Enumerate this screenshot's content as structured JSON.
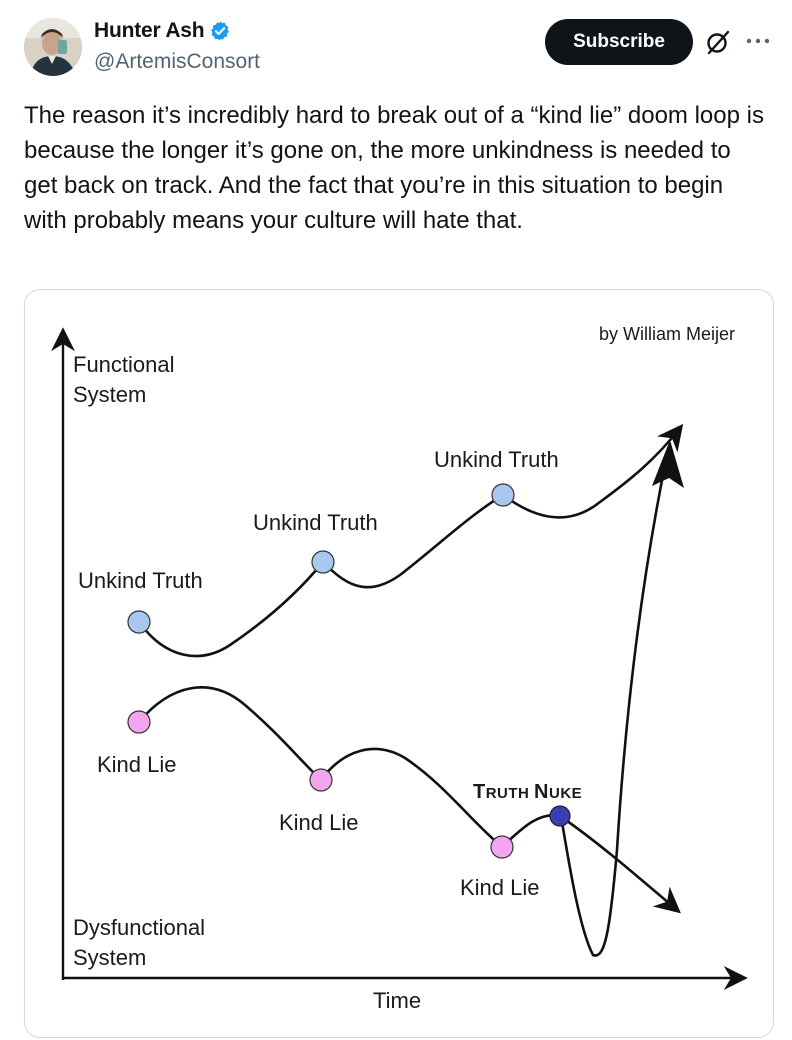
{
  "author": {
    "display_name": "Hunter Ash",
    "handle": "@ArtemisConsort",
    "verified": true,
    "avatar_icon": "avatar-photo"
  },
  "header": {
    "subscribe_label": "Subscribe",
    "grok_icon": "grok-icon",
    "more_icon": "more-options-icon"
  },
  "tweet": {
    "text": "The reason it’s incredibly hard to break out of a “kind lie” doom loop is because the longer it’s gone on, the more unkindness is needed to get back on track. And the fact that you’re in this situation to begin with probably means your culture will hate that."
  },
  "diagram": {
    "credit": "by William Meijer",
    "y_top_label": [
      "Functional",
      "System"
    ],
    "y_bottom_label": [
      "Dysfunctional",
      "System"
    ],
    "x_label": "Time",
    "truth_labels": [
      "Unkind Truth",
      "Unkind Truth",
      "Unkind Truth"
    ],
    "lie_labels": [
      "Kind Lie",
      "Kind Lie",
      "Kind Lie"
    ],
    "nuke_label": {
      "first": "T",
      "rest1": "RUTH ",
      "second": "N",
      "rest2": "UKE"
    },
    "colors": {
      "truth_node": "#a9c8f0",
      "lie_node": "#f3a5ef",
      "nuke_node": "#3b3fb5",
      "line": "#111111"
    }
  }
}
